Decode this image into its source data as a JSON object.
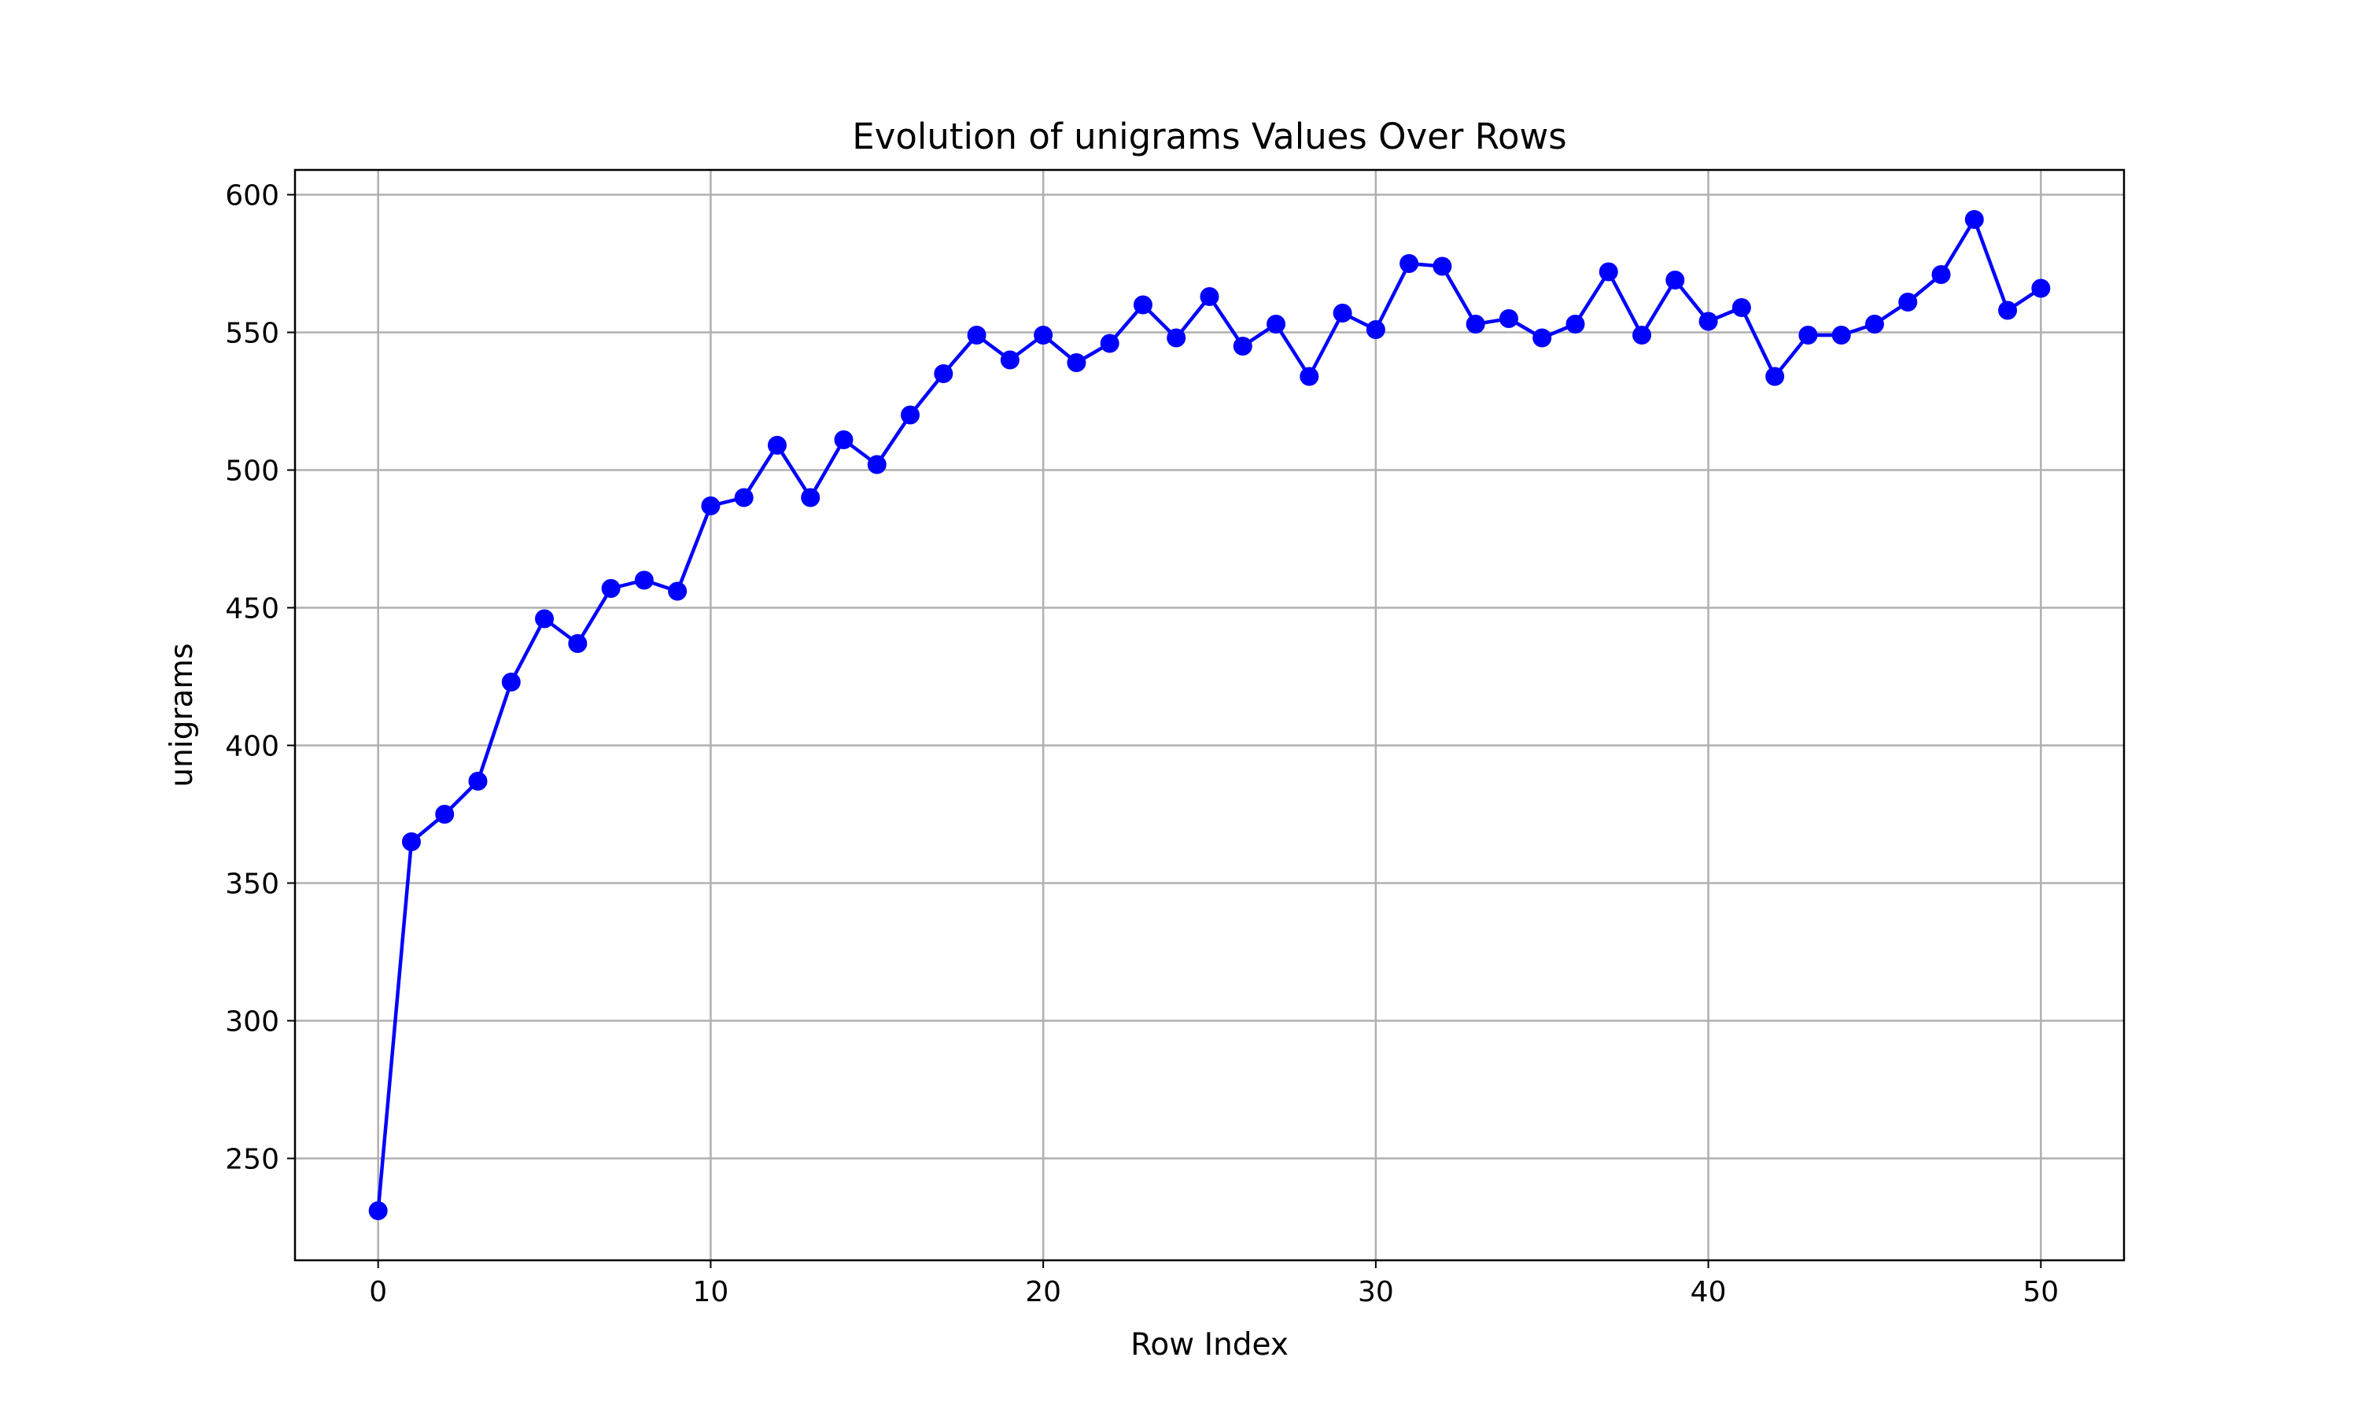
{
  "chart_data": {
    "type": "line",
    "title": "Evolution of unigrams Values Over Rows",
    "xlabel": "Row Index",
    "ylabel": "unigrams",
    "xlim": [
      -2.5,
      52.5
    ],
    "ylim": [
      213,
      609
    ],
    "xticks": [
      0,
      10,
      20,
      30,
      40,
      50
    ],
    "yticks": [
      250,
      300,
      350,
      400,
      450,
      500,
      550,
      600
    ],
    "grid": true,
    "marker": "circle",
    "series": [
      {
        "color": "#0000ff",
        "x": [
          0,
          1,
          2,
          3,
          4,
          5,
          6,
          7,
          8,
          9,
          10,
          11,
          12,
          13,
          14,
          15,
          16,
          17,
          18,
          19,
          20,
          21,
          22,
          23,
          24,
          25,
          26,
          27,
          28,
          29,
          30,
          31,
          32,
          33,
          34,
          35,
          36,
          37,
          38,
          39,
          40,
          41,
          42,
          43,
          44,
          45,
          46,
          47,
          48,
          49,
          50
        ],
        "values": [
          231,
          365,
          375,
          387,
          423,
          446,
          437,
          457,
          460,
          456,
          487,
          490,
          509,
          490,
          511,
          502,
          520,
          535,
          549,
          540,
          549,
          539,
          546,
          560,
          548,
          563,
          545,
          553,
          534,
          557,
          551,
          575,
          574,
          553,
          555,
          548,
          553,
          572,
          549,
          569,
          554,
          559,
          534,
          549,
          549,
          553,
          561,
          571,
          591,
          558,
          566
        ]
      }
    ]
  }
}
